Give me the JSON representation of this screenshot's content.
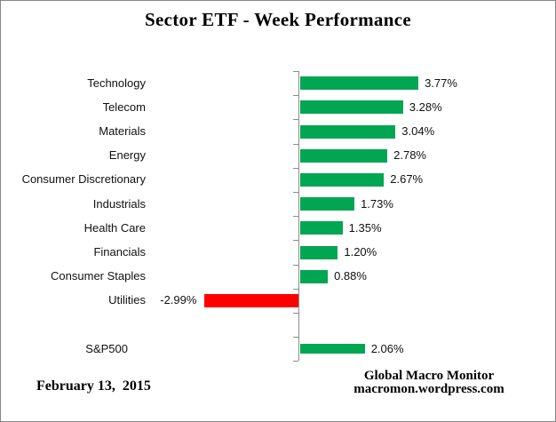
{
  "title": "Sector ETF - Week Performance",
  "footer": {
    "date": "February 13,  2015",
    "brand_line1": "Global Macro Monitor",
    "brand_line2": "macromon.wordpress.com"
  },
  "chart_data": {
    "type": "bar",
    "orientation": "horizontal",
    "title": "Sector ETF - Week Performance",
    "xlabel": "",
    "ylabel": "",
    "grid": false,
    "legend": false,
    "unit": "%",
    "categories": [
      "Technology",
      "Telecom",
      "Materials",
      "Energy",
      "Consumer Discretionary",
      "Industrials",
      "Health Care",
      "Financials",
      "Consumer Staples",
      "Utilities",
      "S&P500"
    ],
    "values": [
      3.77,
      3.28,
      3.04,
      2.78,
      2.67,
      1.73,
      1.35,
      1.2,
      0.88,
      -2.99,
      2.06
    ],
    "value_labels": [
      "3.77%",
      "3.28%",
      "3.04%",
      "2.78%",
      "2.67%",
      "1.73%",
      "1.35%",
      "1.20%",
      "0.88%",
      "-2.99%",
      "2.06%"
    ],
    "note": "S&P500 is separated from the sector bars by one blank category row",
    "positive_color": "#00A651",
    "negative_color": "#FF0000",
    "axis_color": "#8C8C8C",
    "background_color": "#FFFFFF"
  }
}
